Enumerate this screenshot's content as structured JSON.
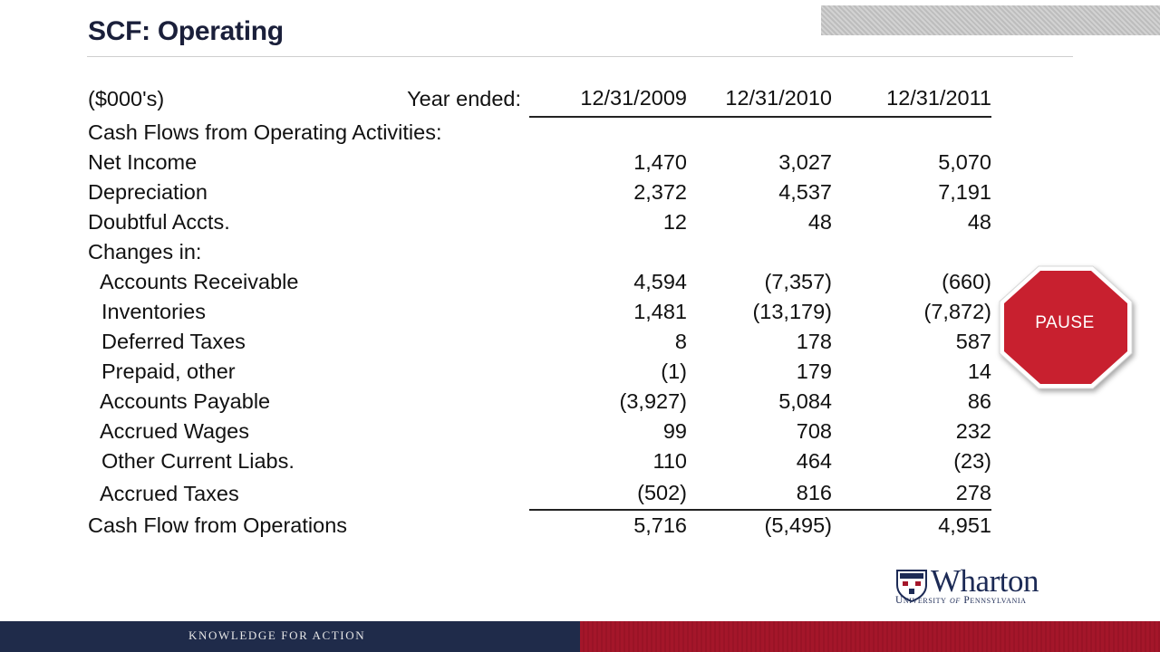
{
  "slide": {
    "title": "SCF: Operating",
    "stop_sign": {
      "label": "PAUSE",
      "color": "#c8202f"
    },
    "logo": {
      "word": "Wharton",
      "sub_prefix": "University ",
      "sub_of": "of",
      "sub_suffix": " Pennsylvania"
    },
    "footer": {
      "text": "KNOWLEDGE FOR ACTION",
      "left_color": "#1f2b4a",
      "right_color": "#a4162a"
    }
  },
  "table": {
    "units": "($000's)",
    "year_label": "Year ended:",
    "columns": [
      "12/31/2009",
      "12/31/2010",
      "12/31/2011"
    ],
    "rows": [
      {
        "label": "Cash Flows from Operating Activities:",
        "values": [
          "",
          "",
          ""
        ]
      },
      {
        "label": "Net Income",
        "values": [
          "1,470",
          "3,027",
          "5,070"
        ]
      },
      {
        "label": "Depreciation",
        "values": [
          "2,372",
          "4,537",
          "7,191"
        ]
      },
      {
        "label": "Doubtful Accts.",
        "values": [
          "12",
          "48",
          "48"
        ]
      },
      {
        "label": "Changes in:",
        "values": [
          "",
          "",
          ""
        ]
      },
      {
        "label": "Accounts Receivable",
        "values": [
          "4,594",
          "(7,357)",
          "(660)"
        ]
      },
      {
        "label": "Inventories",
        "values": [
          "1,481",
          "(13,179)",
          "(7,872)"
        ]
      },
      {
        "label": "Deferred Taxes",
        "values": [
          "8",
          "178",
          "587"
        ]
      },
      {
        "label": "Prepaid, other",
        "values": [
          "(1)",
          "179",
          "14"
        ]
      },
      {
        "label": "Accounts Payable",
        "values": [
          "(3,927)",
          "5,084",
          "86"
        ]
      },
      {
        "label": "Accrued Wages",
        "values": [
          "99",
          "708",
          "232"
        ]
      },
      {
        "label": "Other Current Liabs.",
        "values": [
          "110",
          "464",
          "(23)"
        ]
      },
      {
        "label": "Accrued Taxes",
        "values": [
          "(502)",
          "816",
          "278"
        ]
      },
      {
        "label": "Cash Flow from Operations",
        "values": [
          "5,716",
          "(5,495)",
          "4,951"
        ]
      }
    ]
  }
}
